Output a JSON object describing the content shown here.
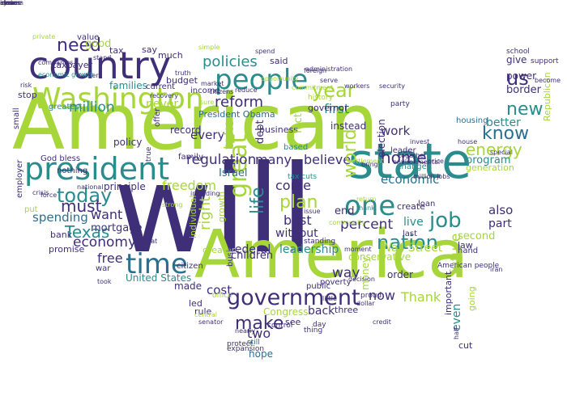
{
  "words": [
    {
      "text": "will",
      "color": "#3f2f78"
    },
    {
      "text": "American",
      "color": "#a6d63a"
    },
    {
      "text": "America",
      "color": "#a6d63a"
    },
    {
      "text": "state",
      "color": "#2a8c8c"
    },
    {
      "text": "country",
      "color": "#3f2f78"
    },
    {
      "text": "president",
      "color": "#2a8c8c"
    },
    {
      "text": "Washington",
      "color": "#a6d63a"
    },
    {
      "text": "people",
      "color": "#2a8c8c"
    },
    {
      "text": "one",
      "color": "#2a8c8c"
    },
    {
      "text": "time",
      "color": "#2a6f8e"
    },
    {
      "text": "government",
      "color": "#3f2f78"
    },
    {
      "text": "nation",
      "color": "#2a8c8c"
    },
    {
      "text": "job",
      "color": "#2a8c8c"
    },
    {
      "text": "today",
      "color": "#2a8c8c"
    },
    {
      "text": "need",
      "color": "#3f2f78"
    },
    {
      "text": "year",
      "color": "#a6d63a"
    },
    {
      "text": "us",
      "color": "#3f2f78"
    },
    {
      "text": "know",
      "color": "#2a6f8e"
    },
    {
      "text": "energy",
      "color": "#a6d63a"
    },
    {
      "text": "plan",
      "color": "#a6d63a"
    },
    {
      "text": "must",
      "color": "#3f2f78"
    },
    {
      "text": "great",
      "color": "#a6d63a"
    },
    {
      "text": "life",
      "color": "#2a8c8c"
    },
    {
      "text": "make",
      "color": "#3f2f78"
    },
    {
      "text": "reform",
      "color": "#3f2f78"
    },
    {
      "text": "Texas",
      "color": "#2a8c8c"
    },
    {
      "text": "home",
      "color": "#3f2f78"
    },
    {
      "text": "new",
      "color": "#2a8c8c"
    },
    {
      "text": "policies",
      "color": "#2a8c8c"
    },
    {
      "text": "percent",
      "color": "#3f2f78"
    },
    {
      "text": "spending",
      "color": "#2a6f8e"
    },
    {
      "text": "economy",
      "color": "#3f2f78"
    },
    {
      "text": "economic",
      "color": "#2a6f8e"
    },
    {
      "text": "believe",
      "color": "#3f2f78"
    },
    {
      "text": "want",
      "color": "#3f2f78"
    },
    {
      "text": "work",
      "color": "#3f2f78"
    },
    {
      "text": "million",
      "color": "#2a8c8c"
    },
    {
      "text": "regulation",
      "color": "#3f2f78"
    },
    {
      "text": "first",
      "color": "#2a8c8c"
    },
    {
      "text": "freedom",
      "color": "#a6d63a"
    },
    {
      "text": "free",
      "color": "#3f2f78"
    },
    {
      "text": "world",
      "color": "#a6d63a"
    },
    {
      "text": "good",
      "color": "#a6d63a"
    },
    {
      "text": "now",
      "color": "#3f2f78"
    },
    {
      "text": "way",
      "color": "#3f2f78"
    },
    {
      "text": "also",
      "color": "#3f2f78"
    },
    {
      "text": "future",
      "color": "#a6d63a"
    },
    {
      "text": "Wall Street",
      "color": "#a6d63a"
    },
    {
      "text": "Thank",
      "color": "#a6d63a"
    },
    {
      "text": "leadership",
      "color": "#2a8c8c"
    },
    {
      "text": "federal",
      "color": "#3f2f78"
    },
    {
      "text": "best",
      "color": "#3f2f78"
    },
    {
      "text": "come",
      "color": "#3f2f78"
    },
    {
      "text": "many",
      "color": "#3f2f78"
    },
    {
      "text": "every",
      "color": "#3f2f78"
    },
    {
      "text": "take",
      "color": "#a6d63a"
    },
    {
      "text": "better",
      "color": "#2a8c8c"
    },
    {
      "text": "cost",
      "color": "#3f2f78"
    },
    {
      "text": "two",
      "color": "#3f2f78"
    },
    {
      "text": "back",
      "color": "#3f2f78"
    },
    {
      "text": "part",
      "color": "#3f2f78"
    },
    {
      "text": "live",
      "color": "#2a8c8c"
    },
    {
      "text": "end",
      "color": "#3f2f78"
    },
    {
      "text": "even",
      "color": "#2a8c8c"
    },
    {
      "text": "hope",
      "color": "#2a6f8e"
    },
    {
      "text": "never",
      "color": "#a6d63a"
    },
    {
      "text": "mortgage",
      "color": "#3f2f78"
    },
    {
      "text": "children",
      "color": "#3f2f78"
    },
    {
      "text": "without",
      "color": "#3f2f78"
    },
    {
      "text": "Israel",
      "color": "#2a6f8e"
    },
    {
      "text": "Congress",
      "color": "#a6d63a"
    },
    {
      "text": "United States",
      "color": "#2a8c8c"
    },
    {
      "text": "President Obama",
      "color": "#2a6f8e"
    },
    {
      "text": "right",
      "color": "#a6d63a"
    },
    {
      "text": "God bless",
      "color": "#3f2f78"
    },
    {
      "text": "taxpayer",
      "color": "#3f2f78"
    },
    {
      "text": "families",
      "color": "#2a8c8c"
    },
    {
      "text": "small",
      "color": "#3f2f78"
    },
    {
      "text": "budget",
      "color": "#3f2f78"
    },
    {
      "text": "business",
      "color": "#3f2f78"
    },
    {
      "text": "income",
      "color": "#3f2f78"
    },
    {
      "text": "debt",
      "color": "#3f2f78"
    },
    {
      "text": "governor",
      "color": "#3f2f78"
    },
    {
      "text": "instead",
      "color": "#3f2f78"
    },
    {
      "text": "change",
      "color": "#2a8c8c"
    },
    {
      "text": "conservative",
      "color": "#a6d63a"
    },
    {
      "text": "second",
      "color": "#a6d63a"
    },
    {
      "text": "program",
      "color": "#2a8c8c"
    },
    {
      "text": "generation",
      "color": "#a6d63a"
    },
    {
      "text": "housing",
      "color": "#2a6f8e"
    },
    {
      "text": "border",
      "color": "#3f2f78"
    },
    {
      "text": "give",
      "color": "#3f2f78"
    },
    {
      "text": "power",
      "color": "#3f2f78"
    },
    {
      "text": "Republican",
      "color": "#a6d63a"
    },
    {
      "text": "bank",
      "color": "#3f2f78"
    },
    {
      "text": "promise",
      "color": "#3f2f78"
    },
    {
      "text": "principle",
      "color": "#3f2f78"
    },
    {
      "text": "policy",
      "color": "#3f2f78"
    },
    {
      "text": "record",
      "color": "#3f2f78"
    },
    {
      "text": "fact",
      "color": "#a6d63a"
    },
    {
      "text": "made",
      "color": "#3f2f78"
    },
    {
      "text": "led",
      "color": "#3f2f78"
    },
    {
      "text": "rule",
      "color": "#3f2f78"
    },
    {
      "text": "three",
      "color": "#3f2f78"
    },
    {
      "text": "cut",
      "color": "#3f2f78"
    },
    {
      "text": "law",
      "color": "#3f2f78"
    },
    {
      "text": "hand",
      "color": "#3f2f78"
    },
    {
      "text": "order",
      "color": "#3f2f78"
    },
    {
      "text": "see",
      "color": "#3f2f78"
    },
    {
      "text": "still",
      "color": "#2a6f8e"
    },
    {
      "text": "create",
      "color": "#3f2f78"
    },
    {
      "text": "American people",
      "color": "#3f2f78"
    },
    {
      "text": "value",
      "color": "#3f2f78"
    },
    {
      "text": "tax",
      "color": "#3f2f78"
    },
    {
      "text": "say",
      "color": "#3f2f78"
    },
    {
      "text": "much",
      "color": "#3f2f78"
    },
    {
      "text": "said",
      "color": "#3f2f78"
    },
    {
      "text": "current",
      "color": "#3f2f78"
    },
    {
      "text": "stop",
      "color": "#3f2f78"
    },
    {
      "text": "greatest",
      "color": "#2a8c8c"
    },
    {
      "text": "offer",
      "color": "#3f2f78"
    },
    {
      "text": "nothing",
      "color": "#3f2f78"
    },
    {
      "text": "employer",
      "color": "#3f2f78"
    },
    {
      "text": "put",
      "color": "#a6d63a"
    },
    {
      "text": "greater",
      "color": "#a6d63a"
    },
    {
      "text": "citizen",
      "color": "#3f2f78"
    },
    {
      "text": "war",
      "color": "#3f2f78"
    },
    {
      "text": "growth",
      "color": "#a6d63a"
    },
    {
      "text": "individual",
      "color": "#a6d63a"
    },
    {
      "text": "based",
      "color": "#2a8c8c"
    },
    {
      "text": "important",
      "color": "#3f2f78"
    },
    {
      "text": "poverty",
      "color": "#3f2f78"
    },
    {
      "text": "money",
      "color": "#a6d63a"
    },
    {
      "text": "last",
      "color": "#3f2f78"
    },
    {
      "text": "private",
      "color": "#a6d63a"
    },
    {
      "text": "tax cuts",
      "color": "#2a8c8c"
    },
    {
      "text": "party",
      "color": "#3f2f78"
    },
    {
      "text": "leader",
      "color": "#3f2f78"
    },
    {
      "text": "election",
      "color": "#3f2f78"
    },
    {
      "text": "day",
      "color": "#3f2f78"
    },
    {
      "text": "history",
      "color": "#a6d63a"
    },
    {
      "text": "security",
      "color": "#3f2f78"
    },
    {
      "text": "senator",
      "color": "#3f2f78"
    },
    {
      "text": "office",
      "color": "#a6d63a"
    },
    {
      "text": "family",
      "color": "#3f2f78"
    },
    {
      "text": "half",
      "color": "#3f2f78"
    },
    {
      "text": "school",
      "color": "#3f2f78"
    },
    {
      "text": "support",
      "color": "#3f2f78"
    },
    {
      "text": "become",
      "color": "#3f2f78"
    },
    {
      "text": "going",
      "color": "#a6d63a"
    },
    {
      "text": "loan",
      "color": "#3f2f78"
    },
    {
      "text": "public",
      "color": "#3f2f78"
    },
    {
      "text": "thing",
      "color": "#3f2f78"
    },
    {
      "text": "risk",
      "color": "#3f2f78"
    },
    {
      "text": "crisis",
      "color": "#3f2f78"
    },
    {
      "text": "simple",
      "color": "#a6d63a"
    },
    {
      "text": "market",
      "color": "#3f2f78"
    },
    {
      "text": "sure",
      "color": "#a6d63a"
    },
    {
      "text": "spend",
      "color": "#3f2f78"
    },
    {
      "text": "truth",
      "color": "#3f2f78"
    },
    {
      "text": "stand",
      "color": "#3f2f78"
    },
    {
      "text": "rather",
      "color": "#3f2f78"
    },
    {
      "text": "economic growth",
      "color": "#2a8c8c"
    },
    {
      "text": "companies",
      "color": "#3f2f78"
    },
    {
      "text": "workers",
      "color": "#3f2f78"
    },
    {
      "text": "invest",
      "color": "#3f2f78"
    },
    {
      "text": "together",
      "color": "#3f2f78"
    },
    {
      "text": "environmental",
      "color": "#3f2f78"
    },
    {
      "text": "return",
      "color": "#a6d63a"
    },
    {
      "text": "thank",
      "color": "#2a8c8c"
    },
    {
      "text": "proud",
      "color": "#3f2f78"
    },
    {
      "text": "control",
      "color": "#3f2f78"
    },
    {
      "text": "protect",
      "color": "#3f2f78"
    },
    {
      "text": "nearly",
      "color": "#3f2f78"
    },
    {
      "text": "central",
      "color": "#a6d63a"
    },
    {
      "text": "expansion",
      "color": "#3f2f78"
    },
    {
      "text": "true",
      "color": "#3f2f78"
    },
    {
      "text": "issue",
      "color": "#3f2f78"
    },
    {
      "text": "standing",
      "color": "#3f2f78"
    },
    {
      "text": "businesses",
      "color": "#3f2f78"
    },
    {
      "text": "reduce",
      "color": "#3f2f78"
    },
    {
      "text": "citizens",
      "color": "#3f2f78"
    },
    {
      "text": "opportunity",
      "color": "#a6d63a"
    },
    {
      "text": "commitment",
      "color": "#a6d63a"
    },
    {
      "text": "administration",
      "color": "#3f2f78"
    },
    {
      "text": "foreign",
      "color": "#3f2f78"
    },
    {
      "text": "price",
      "color": "#3f2f78"
    },
    {
      "text": "settlement",
      "color": "#a6d63a"
    },
    {
      "text": "special",
      "color": "#3f2f78"
    },
    {
      "text": "iran",
      "color": "#3f2f78"
    },
    {
      "text": "house",
      "color": "#3f2f78"
    },
    {
      "text": "took",
      "color": "#3f2f78"
    },
    {
      "text": "threat",
      "color": "#3f2f78"
    },
    {
      "text": "community",
      "color": "#a6d63a"
    },
    {
      "text": "moment",
      "color": "#3f2f78"
    },
    {
      "text": "decision",
      "color": "#3f2f78"
    },
    {
      "text": "little",
      "color": "#3f2f78"
    },
    {
      "text": "bring",
      "color": "#3f2f78"
    },
    {
      "text": "force",
      "color": "#3f2f78"
    },
    {
      "text": "national",
      "color": "#3f2f78"
    },
    {
      "text": "recovery",
      "color": "#3f2f78"
    },
    {
      "text": "serve",
      "color": "#3f2f78"
    },
    {
      "text": "credit",
      "color": "#3f2f78"
    },
    {
      "text": "dollar",
      "color": "#3f2f78"
    },
    {
      "text": "including",
      "color": "#3f2f78"
    },
    {
      "text": "million jobs",
      "color": "#3f2f78"
    },
    {
      "text": "strong",
      "color": "#a6d63a"
    },
    {
      "text": "close",
      "color": "#3f2f78"
    },
    {
      "text": "ensure",
      "color": "#3f2f78"
    },
    {
      "text": "system",
      "color": "#3f2f78"
    },
    {
      "text": "idea",
      "color": "#3f2f78"
    },
    {
      "text": "move",
      "color": "#3f2f78"
    },
    {
      "text": "across",
      "color": "#3f2f78"
    }
  ]
}
